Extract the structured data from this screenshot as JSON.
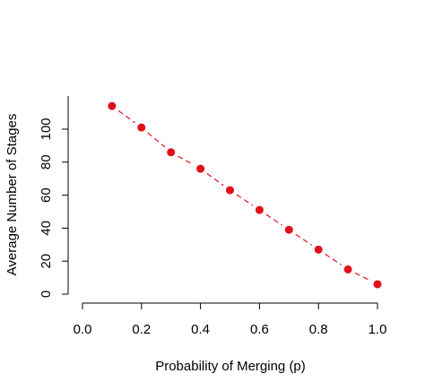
{
  "chart_data": {
    "type": "line",
    "xlabel": "Probability of Merging (p)",
    "ylabel": "Average Number of Stages",
    "xlim": [
      0.0,
      1.0
    ],
    "ylim": [
      0,
      120
    ],
    "x_ticks": [
      0.0,
      0.2,
      0.4,
      0.6,
      0.8,
      1.0
    ],
    "x_tick_labels": [
      "0.0",
      "0.2",
      "0.4",
      "0.6",
      "0.8",
      "1.0"
    ],
    "y_ticks": [
      0,
      20,
      40,
      60,
      80,
      100
    ],
    "y_tick_labels": [
      "0",
      "20",
      "40",
      "60",
      "80",
      "100"
    ],
    "grid": false,
    "line_style": "dashed",
    "marker": "filled-circle",
    "color": "#e0111b",
    "series": [
      {
        "x": [
          0.1,
          0.2,
          0.3,
          0.4,
          0.5,
          0.6,
          0.7,
          0.8,
          0.9,
          1.0
        ],
        "y": [
          114,
          101,
          86,
          76,
          63,
          51,
          39,
          27,
          15,
          6
        ]
      }
    ]
  }
}
